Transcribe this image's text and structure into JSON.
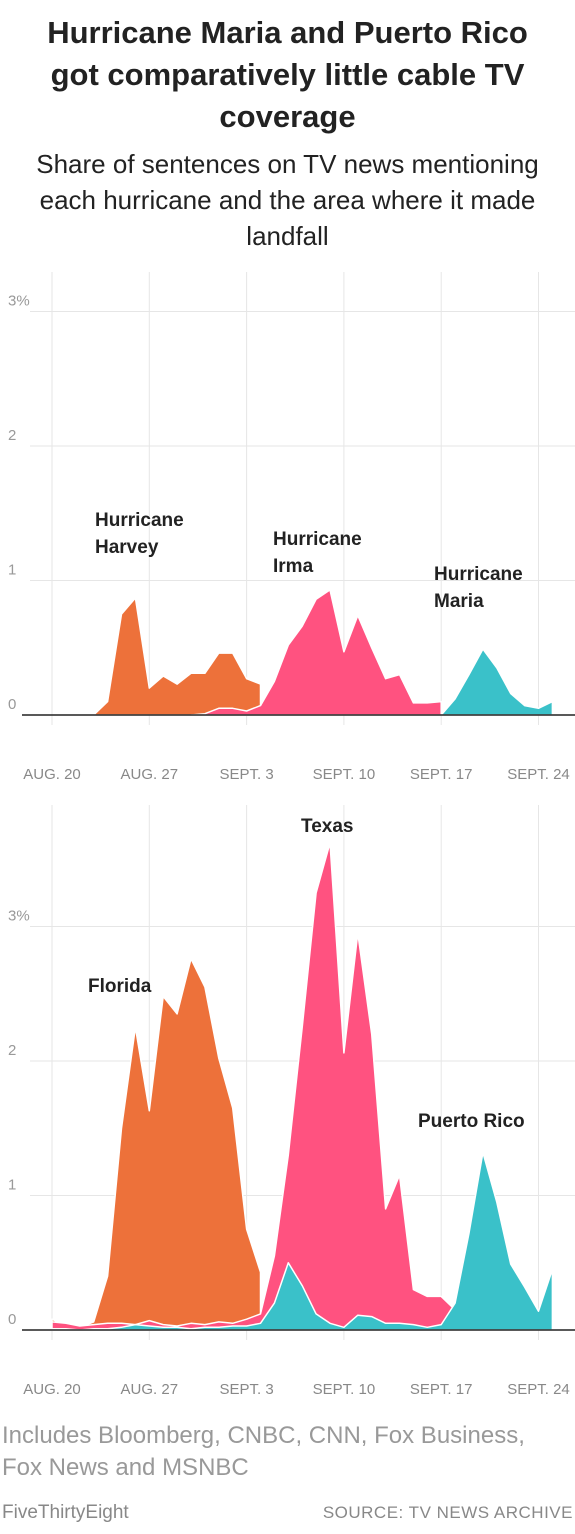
{
  "header": {
    "title": "Hurricane Maria and Puerto Rico got comparatively little cable TV coverage",
    "subtitle": "Share of sentences on TV news mentioning each hurricane and the area where it made landfall"
  },
  "footer": {
    "note": "Includes Bloomberg, CNBC, CNN, Fox Business, Fox News and MSNBC",
    "credit": "FiveThirtyEight",
    "source": "SOURCE: TV NEWS ARCHIVE"
  },
  "chart_data": [
    {
      "type": "area",
      "x_axis": "date",
      "x_start": "AUG. 20",
      "x_ticks": [
        {
          "day": 0,
          "label": "AUG. 20"
        },
        {
          "day": 7,
          "label": "AUG. 27"
        },
        {
          "day": 14,
          "label": "SEPT. 3"
        },
        {
          "day": 21,
          "label": "SEPT. 10"
        },
        {
          "day": 28,
          "label": "SEPT. 17"
        },
        {
          "day": 35,
          "label": "SEPT. 24"
        }
      ],
      "y_ticks": [
        {
          "value": 0,
          "label": "0"
        },
        {
          "value": 1,
          "label": "1"
        },
        {
          "value": 2,
          "label": "2"
        },
        {
          "value": 3,
          "label": "3%"
        }
      ],
      "ylim": [
        0,
        3.0
      ],
      "grid": true,
      "series": [
        {
          "name": "Hurricane Harvey",
          "color": "#ed713a",
          "x": [
            3,
            4,
            5,
            6,
            7,
            8,
            9,
            10,
            11,
            12,
            13,
            14,
            15
          ],
          "values": [
            0,
            0.1,
            0.75,
            0.87,
            0.2,
            0.29,
            0.23,
            0.31,
            0.31,
            0.46,
            0.46,
            0.27,
            0.23
          ]
        },
        {
          "name": "Hurricane Irma",
          "color": "#ff5280",
          "x": [
            10,
            11,
            12,
            13,
            14,
            15,
            16,
            17,
            18,
            19,
            20,
            21,
            22,
            23,
            24,
            25,
            26,
            27,
            28
          ],
          "values": [
            0,
            0.01,
            0.05,
            0.05,
            0.03,
            0.07,
            0.25,
            0.52,
            0.66,
            0.86,
            0.93,
            0.47,
            0.74,
            0.5,
            0.27,
            0.3,
            0.09,
            0.09,
            0.1
          ]
        },
        {
          "name": "Hurricane Maria",
          "color": "#3ac1c9",
          "x": [
            28,
            29,
            30,
            31,
            32,
            33,
            34,
            35,
            36
          ],
          "values": [
            0,
            0.12,
            0.3,
            0.49,
            0.35,
            0.16,
            0.07,
            0.05,
            0.1
          ]
        }
      ]
    },
    {
      "type": "area",
      "x_axis": "date",
      "x_start": "AUG. 20",
      "x_ticks": [
        {
          "day": 0,
          "label": "AUG. 20"
        },
        {
          "day": 7,
          "label": "AUG. 27"
        },
        {
          "day": 14,
          "label": "SEPT. 3"
        },
        {
          "day": 21,
          "label": "SEPT. 10"
        },
        {
          "day": 28,
          "label": "SEPT. 17"
        },
        {
          "day": 35,
          "label": "SEPT. 24"
        }
      ],
      "y_ticks": [
        {
          "value": 0,
          "label": "0"
        },
        {
          "value": 1,
          "label": "1"
        },
        {
          "value": 2,
          "label": "2"
        },
        {
          "value": 3,
          "label": "3%"
        }
      ],
      "ylim": [
        0,
        3.0
      ],
      "grid": true,
      "series": [
        {
          "name": "Texas",
          "color": "#ed713a",
          "x": [
            0,
            1,
            2,
            3,
            4,
            5,
            6,
            7,
            8,
            9,
            10,
            11,
            12,
            13,
            14,
            15
          ],
          "values": [
            0.08,
            0.03,
            0.02,
            0.06,
            0.4,
            1.5,
            2.25,
            1.63,
            2.48,
            2.35,
            2.76,
            2.55,
            2.02,
            1.65,
            0.75,
            0.43
          ]
        },
        {
          "name": "Florida",
          "color": "#ff5280",
          "x": [
            0,
            1,
            2,
            3,
            4,
            5,
            6,
            7,
            8,
            9,
            10,
            11,
            12,
            13,
            14,
            15,
            16,
            17,
            18,
            19,
            20,
            21,
            22,
            23,
            24,
            25,
            26,
            27,
            28,
            29
          ],
          "values": [
            0.06,
            0.05,
            0.03,
            0.04,
            0.05,
            0.05,
            0.04,
            0.07,
            0.04,
            0.03,
            0.05,
            0.04,
            0.06,
            0.05,
            0.08,
            0.12,
            0.55,
            1.3,
            2.25,
            3.25,
            3.62,
            2.06,
            2.95,
            2.2,
            0.9,
            1.15,
            0.3,
            0.25,
            0.25,
            0.15
          ]
        },
        {
          "name": "Puerto Rico",
          "color": "#3ac1c9",
          "x": [
            0,
            1,
            2,
            3,
            4,
            5,
            6,
            7,
            8,
            9,
            10,
            11,
            12,
            13,
            14,
            15,
            16,
            17,
            18,
            19,
            20,
            21,
            22,
            23,
            24,
            25,
            26,
            27,
            28,
            29,
            30,
            31,
            32,
            33,
            34,
            35,
            36
          ],
          "values": [
            0.01,
            0.01,
            0.0,
            0.01,
            0.01,
            0.02,
            0.04,
            0.03,
            0.02,
            0.02,
            0.01,
            0.02,
            0.02,
            0.03,
            0.03,
            0.05,
            0.2,
            0.5,
            0.33,
            0.12,
            0.05,
            0.02,
            0.11,
            0.1,
            0.05,
            0.05,
            0.04,
            0.02,
            0.04,
            0.2,
            0.72,
            1.32,
            0.95,
            0.49,
            0.32,
            0.14,
            0.45
          ]
        }
      ]
    }
  ]
}
